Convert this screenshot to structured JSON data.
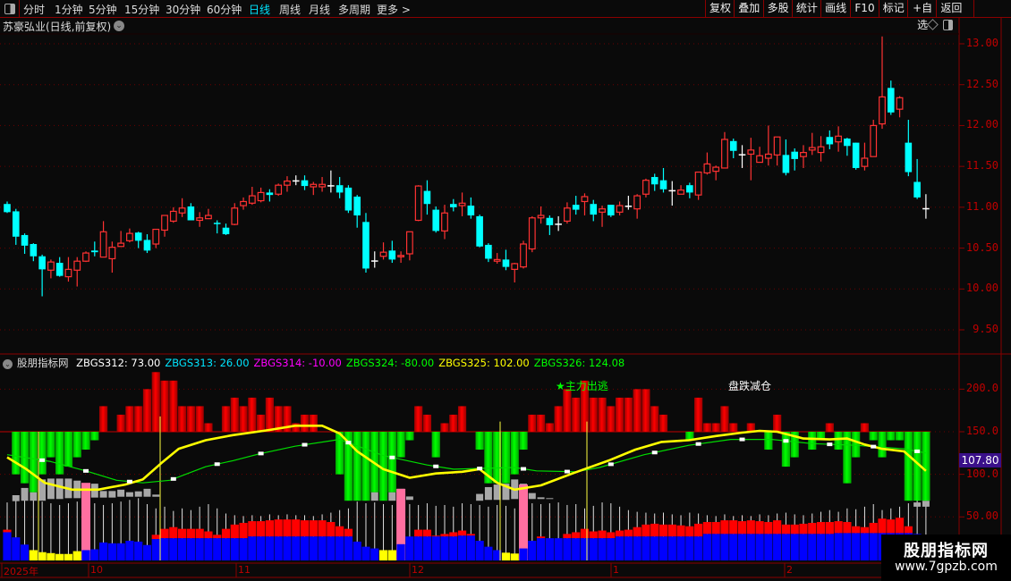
{
  "toolbar": {
    "periods": [
      "分时",
      "1分钟",
      "5分钟",
      "15分钟",
      "30分钟",
      "60分钟",
      "日线",
      "周线",
      "月线",
      "多周期",
      "更多 >"
    ],
    "active_period": "日线",
    "buttons": [
      "复权",
      "叠加",
      "多股",
      "统计",
      "画线",
      "F10",
      "标记",
      "+自选",
      "返回"
    ]
  },
  "chart": {
    "title": "苏豪弘业(日线,前复权)",
    "price_axis": [
      "13.00",
      "12.50",
      "12.00",
      "11.50",
      "11.00",
      "10.50",
      "10.00",
      "9.50"
    ],
    "up_color": "#ff3232",
    "down_color": "#00ffff",
    "candles": [
      [
        11.04,
        11.07,
        10.93,
        10.94
      ],
      [
        10.95,
        10.98,
        10.54,
        10.64
      ],
      [
        10.66,
        10.68,
        10.43,
        10.53
      ],
      [
        10.55,
        10.56,
        10.34,
        10.4
      ],
      [
        10.4,
        10.42,
        9.91,
        10.24
      ],
      [
        10.23,
        10.36,
        10.13,
        10.33
      ],
      [
        10.32,
        10.39,
        10.15,
        10.16
      ],
      [
        10.15,
        10.39,
        10.09,
        10.24
      ],
      [
        10.23,
        10.39,
        10.03,
        10.34
      ],
      [
        10.34,
        10.46,
        10.33,
        10.44
      ],
      [
        10.47,
        10.58,
        10.4,
        10.45
      ],
      [
        10.39,
        10.83,
        10.39,
        10.7
      ],
      [
        10.37,
        10.58,
        10.2,
        10.51
      ],
      [
        10.52,
        10.71,
        10.52,
        10.56
      ],
      [
        10.59,
        10.74,
        10.57,
        10.68
      ],
      [
        10.69,
        10.7,
        10.5,
        10.59
      ],
      [
        10.6,
        10.67,
        10.44,
        10.47
      ],
      [
        10.55,
        10.73,
        10.5,
        10.73
      ],
      [
        10.72,
        10.9,
        10.64,
        10.9
      ],
      [
        10.83,
        11.0,
        10.81,
        10.95
      ],
      [
        10.93,
        11.11,
        10.88,
        10.99
      ],
      [
        11.01,
        11.05,
        10.84,
        10.84
      ],
      [
        10.84,
        10.94,
        10.76,
        10.87
      ],
      [
        10.86,
        10.98,
        10.86,
        10.9
      ],
      [
        10.81,
        10.84,
        10.68,
        10.8
      ],
      [
        10.75,
        10.8,
        10.66,
        10.67
      ],
      [
        10.79,
        11.05,
        10.78,
        10.99
      ],
      [
        11.02,
        11.12,
        10.97,
        11.07
      ],
      [
        11.05,
        11.25,
        11.03,
        11.14
      ],
      [
        11.08,
        11.24,
        11.06,
        11.18
      ],
      [
        11.18,
        11.22,
        11.07,
        11.15
      ],
      [
        11.16,
        11.29,
        11.14,
        11.27
      ],
      [
        11.27,
        11.38,
        11.19,
        11.32
      ],
      [
        11.33,
        11.39,
        11.27,
        11.33
      ],
      [
        11.33,
        11.39,
        11.21,
        11.26
      ],
      [
        11.25,
        11.31,
        11.15,
        11.28
      ],
      [
        11.25,
        11.37,
        11.19,
        11.28
      ],
      [
        11.27,
        11.45,
        11.18,
        11.27
      ],
      [
        11.27,
        11.37,
        11.11,
        11.18
      ],
      [
        11.24,
        11.27,
        10.93,
        10.96
      ],
      [
        11.13,
        11.15,
        10.75,
        10.9
      ],
      [
        10.82,
        10.93,
        10.2,
        10.25
      ],
      [
        10.35,
        10.46,
        10.26,
        10.35
      ],
      [
        10.4,
        10.57,
        10.36,
        10.45
      ],
      [
        10.47,
        10.59,
        10.32,
        10.36
      ],
      [
        10.4,
        10.46,
        10.32,
        10.41
      ],
      [
        10.43,
        10.7,
        10.35,
        10.7
      ],
      [
        10.84,
        11.27,
        10.83,
        11.26
      ],
      [
        11.2,
        11.33,
        10.91,
        11.04
      ],
      [
        10.97,
        11.01,
        10.69,
        10.71
      ],
      [
        10.71,
        11.03,
        10.61,
        10.93
      ],
      [
        11.04,
        11.1,
        10.95,
        11.0
      ],
      [
        11.02,
        11.18,
        10.89,
        11.05
      ],
      [
        11.02,
        11.12,
        10.86,
        10.9
      ],
      [
        10.89,
        10.91,
        10.51,
        10.52
      ],
      [
        10.54,
        10.56,
        10.33,
        10.37
      ],
      [
        10.34,
        10.44,
        10.31,
        10.36
      ],
      [
        10.36,
        10.48,
        10.23,
        10.27
      ],
      [
        10.24,
        10.32,
        10.08,
        10.31
      ],
      [
        10.27,
        10.59,
        10.25,
        10.55
      ],
      [
        10.49,
        10.89,
        10.45,
        10.87
      ],
      [
        10.87,
        11.01,
        10.8,
        10.9
      ],
      [
        10.87,
        10.9,
        10.66,
        10.78
      ],
      [
        10.8,
        10.89,
        10.71,
        10.8
      ],
      [
        10.83,
        11.06,
        10.8,
        10.99
      ],
      [
        11.03,
        11.14,
        10.91,
        10.97
      ],
      [
        11.07,
        11.17,
        10.9,
        11.13
      ],
      [
        11.04,
        11.09,
        10.83,
        10.91
      ],
      [
        10.94,
        11.02,
        10.76,
        10.98
      ],
      [
        11.03,
        11.03,
        10.88,
        10.9
      ],
      [
        10.94,
        11.07,
        10.9,
        11.02
      ],
      [
        11.02,
        11.14,
        10.97,
        11.02
      ],
      [
        10.98,
        11.16,
        10.86,
        11.14
      ],
      [
        11.16,
        11.35,
        11.12,
        11.33
      ],
      [
        11.37,
        11.41,
        11.2,
        11.28
      ],
      [
        11.33,
        11.48,
        11.18,
        11.22
      ],
      [
        11.21,
        11.32,
        11.02,
        11.21
      ],
      [
        11.16,
        11.27,
        11.16,
        11.21
      ],
      [
        11.27,
        11.3,
        11.11,
        11.18
      ],
      [
        11.15,
        11.43,
        11.09,
        11.43
      ],
      [
        11.42,
        11.67,
        11.4,
        11.53
      ],
      [
        11.44,
        11.51,
        11.33,
        11.49
      ],
      [
        11.48,
        11.92,
        11.48,
        11.83
      ],
      [
        11.81,
        11.84,
        11.6,
        11.69
      ],
      [
        11.65,
        11.76,
        11.48,
        11.65
      ],
      [
        11.65,
        11.85,
        11.33,
        11.7
      ],
      [
        11.55,
        11.74,
        11.55,
        11.63
      ],
      [
        11.6,
        12.0,
        11.51,
        11.65
      ],
      [
        11.64,
        11.86,
        11.51,
        11.86
      ],
      [
        11.64,
        11.83,
        11.39,
        11.42
      ],
      [
        11.68,
        11.72,
        11.45,
        11.59
      ],
      [
        11.62,
        11.76,
        11.48,
        11.67
      ],
      [
        11.7,
        11.91,
        11.64,
        11.73
      ],
      [
        11.67,
        11.87,
        11.56,
        11.74
      ],
      [
        11.86,
        11.94,
        11.71,
        11.77
      ],
      [
        11.8,
        11.99,
        11.68,
        11.87
      ],
      [
        11.84,
        11.85,
        11.63,
        11.75
      ],
      [
        11.79,
        11.79,
        11.46,
        11.48
      ],
      [
        11.5,
        11.79,
        11.45,
        11.6
      ],
      [
        11.62,
        12.07,
        11.62,
        12.0
      ],
      [
        12.02,
        13.09,
        11.96,
        12.35
      ],
      [
        12.46,
        12.55,
        12.13,
        12.16
      ],
      [
        12.2,
        12.36,
        12.1,
        12.34
      ],
      [
        11.79,
        12.07,
        11.38,
        11.43
      ],
      [
        11.31,
        11.59,
        11.1,
        11.12
      ],
      [
        10.99,
        11.16,
        10.86,
        10.99
      ]
    ]
  },
  "indicator": {
    "name": "股朋指标网",
    "values": [
      {
        "label": "ZBGS312: 73.00",
        "color": "#ffffff"
      },
      {
        "label": "ZBGS313: 26.00",
        "color": "#00e5ff"
      },
      {
        "label": "ZBGS314: -10.00",
        "color": "#ff00ff"
      },
      {
        "label": "ZBGS324: -80.00",
        "color": "#00ff00"
      },
      {
        "label": "ZBGS325: 102.00",
        "color": "#ffff00"
      },
      {
        "label": "ZBGS326: 124.08",
        "color": "#00ff00"
      }
    ],
    "axis": [
      "200.0",
      "150.0",
      "100.0",
      "50.00"
    ],
    "current_value": "107.80",
    "annotations": [
      {
        "text": "★主力出逃",
        "color": "#00ff00"
      },
      {
        "text": "盘跌减仓",
        "color": "#ffffff"
      }
    ],
    "histogram_baseline": 150,
    "histogram": [
      150,
      100,
      89.5,
      79,
      100,
      120,
      100,
      109,
      120,
      129,
      140,
      180,
      150,
      170,
      180,
      180,
      200,
      220,
      210,
      210,
      180,
      180,
      180,
      160,
      150,
      180,
      190,
      180,
      190,
      170,
      190,
      180,
      180,
      160,
      170,
      170,
      150,
      150,
      100,
      69,
      69,
      69,
      79,
      69,
      79,
      120,
      140,
      180,
      170,
      120,
      160,
      170,
      180,
      150,
      129,
      89.5,
      89.5,
      89.5,
      100,
      129,
      170,
      170,
      160,
      180,
      200,
      190,
      210,
      190,
      190,
      180,
      190,
      190,
      200,
      200,
      180,
      170,
      150,
      150,
      140,
      190,
      160,
      160,
      180,
      160,
      150,
      160,
      150,
      129,
      170,
      109,
      120,
      150,
      129,
      140,
      160,
      129,
      89.5,
      120,
      160,
      140,
      120,
      140,
      140,
      69,
      69,
      69
    ],
    "yellow_line": [
      [
        1,
        120
      ],
      [
        3.2,
        106
      ],
      [
        5.3,
        90
      ],
      [
        8.4,
        82
      ],
      [
        11.4,
        82
      ],
      [
        14.5,
        88
      ],
      [
        16.5,
        94
      ],
      [
        18.6,
        113
      ],
      [
        20.6,
        130
      ],
      [
        23.7,
        140
      ],
      [
        26.8,
        146
      ],
      [
        30.9,
        152
      ],
      [
        33.9,
        157
      ],
      [
        37,
        157
      ],
      [
        39,
        148
      ],
      [
        41,
        127
      ],
      [
        44,
        106
      ],
      [
        47,
        96
      ],
      [
        50,
        101
      ],
      [
        53,
        103
      ],
      [
        55,
        106
      ],
      [
        57,
        90
      ],
      [
        59,
        82
      ],
      [
        62,
        87
      ],
      [
        65.6,
        101
      ],
      [
        69.7,
        116
      ],
      [
        72.8,
        129
      ],
      [
        75.8,
        138
      ],
      [
        78.9,
        140
      ],
      [
        82,
        145
      ],
      [
        85,
        149
      ],
      [
        87,
        151
      ],
      [
        89,
        150
      ],
      [
        92,
        142
      ],
      [
        95,
        141
      ],
      [
        97,
        142
      ],
      [
        99,
        135
      ],
      [
        101,
        130
      ],
      [
        103.5,
        127
      ],
      [
        106,
        104
      ]
    ],
    "green_line": [
      [
        1,
        123
      ],
      [
        6,
        115
      ],
      [
        10,
        104
      ],
      [
        13.5,
        93
      ],
      [
        16.5,
        90
      ],
      [
        19.6,
        93
      ],
      [
        23.7,
        109
      ],
      [
        26.8,
        116
      ],
      [
        29.8,
        124
      ],
      [
        33.9,
        133
      ],
      [
        39,
        141
      ],
      [
        44,
        122
      ],
      [
        49,
        111
      ],
      [
        52,
        106
      ],
      [
        59,
        108
      ],
      [
        61.5,
        104
      ],
      [
        66,
        103
      ],
      [
        68.7,
        108
      ],
      [
        73.8,
        123
      ],
      [
        78.9,
        134
      ],
      [
        83.7,
        141
      ],
      [
        88.4,
        141
      ],
      [
        93,
        136
      ],
      [
        98,
        134
      ],
      [
        103.5,
        130
      ],
      [
        106,
        125
      ]
    ],
    "blue": [
      32,
      26,
      17.5,
      11,
      8.6,
      7.5,
      6.5,
      6.5,
      9.8,
      11,
      12,
      20,
      19,
      19,
      22,
      21,
      17,
      24,
      25,
      25,
      25,
      25,
      25,
      25,
      25,
      25,
      25,
      25,
      27,
      27,
      27,
      27,
      27,
      27,
      27,
      27,
      27,
      27,
      27,
      27,
      21,
      15,
      13,
      11,
      11,
      18,
      27,
      27,
      27,
      27,
      27,
      27,
      28,
      28,
      22,
      15,
      11,
      8,
      7,
      13,
      22,
      25,
      25,
      25,
      25,
      25,
      25,
      25,
      25,
      25,
      27,
      27,
      27,
      27,
      27,
      27,
      27,
      27,
      27,
      27,
      30,
      30,
      30,
      30,
      30,
      30,
      30,
      30,
      30,
      30,
      30,
      30,
      30,
      30,
      30,
      31,
      31,
      31,
      31,
      31,
      31,
      31,
      31,
      31,
      30,
      0
    ],
    "red": [
      35,
      0,
      0,
      0,
      0,
      0,
      0,
      0,
      0,
      0,
      0,
      0,
      0,
      0,
      0,
      0,
      0,
      29,
      36,
      38,
      36,
      36,
      36,
      33,
      29,
      36,
      41,
      43,
      45,
      45,
      46,
      47,
      47,
      47,
      46,
      46,
      46,
      44,
      39,
      36,
      0,
      0,
      0,
      0,
      0,
      0,
      0,
      35,
      35,
      28,
      30,
      32,
      34,
      30,
      0,
      0,
      0,
      0,
      0,
      0,
      0,
      27,
      0,
      0,
      30,
      32,
      36,
      33,
      34,
      32,
      34,
      35,
      38,
      41,
      42,
      41,
      41,
      40,
      39,
      42,
      44,
      44,
      46,
      46,
      45,
      46,
      45,
      44,
      46,
      41,
      41,
      42,
      43,
      44,
      44,
      45,
      44,
      39,
      38,
      43,
      48,
      47,
      49,
      39,
      0,
      0
    ],
    "yellow_bars": [
      4,
      5,
      6,
      7,
      8,
      9,
      44,
      45,
      58,
      59
    ],
    "pink_bars": [
      [
        10,
        90
      ],
      [
        46,
        83
      ],
      [
        60,
        88
      ]
    ],
    "gray_bars": [
      [
        2,
        75.5,
        68.5
      ],
      [
        3,
        84,
        69
      ],
      [
        4,
        79,
        69
      ],
      [
        5,
        94,
        69
      ],
      [
        6,
        95,
        71
      ],
      [
        7,
        95,
        71
      ],
      [
        8,
        95,
        72
      ],
      [
        9,
        92.6,
        72
      ],
      [
        10,
        89.5,
        72.7
      ],
      [
        11,
        89,
        72.7
      ],
      [
        12,
        80.4,
        72.7
      ],
      [
        13,
        80.4,
        72.7
      ],
      [
        14,
        82,
        73.7
      ],
      [
        15,
        79,
        73.7
      ],
      [
        16,
        80,
        73.7
      ],
      [
        17,
        83,
        73.7
      ],
      [
        18,
        76.2,
        73.7
      ],
      [
        43,
        79,
        69
      ],
      [
        45,
        79,
        69
      ],
      [
        46,
        83,
        70
      ],
      [
        47,
        74,
        70
      ],
      [
        55,
        77,
        69
      ],
      [
        56,
        85,
        70
      ],
      [
        57,
        88,
        70
      ],
      [
        58,
        89,
        70
      ],
      [
        59,
        94,
        71
      ],
      [
        60,
        89,
        71
      ],
      [
        61,
        78,
        71
      ],
      [
        62,
        73,
        71
      ],
      [
        63,
        72,
        71
      ],
      [
        105,
        67,
        62
      ],
      [
        106,
        69,
        62
      ]
    ],
    "white_lines": [
      67,
      70,
      72,
      70,
      68,
      66,
      64,
      66,
      68,
      70,
      66,
      64,
      66,
      68,
      70,
      72,
      65,
      60,
      62,
      57,
      60,
      58,
      62,
      65,
      60,
      54,
      52,
      51,
      52,
      51,
      53,
      52,
      53,
      52,
      52,
      51,
      53,
      55,
      58,
      60,
      68,
      66,
      67,
      65,
      64,
      66,
      65,
      64,
      66,
      63,
      64,
      62,
      66,
      65,
      64,
      62,
      64,
      63,
      60,
      62,
      66,
      65,
      66,
      67,
      64,
      65,
      60,
      63,
      67,
      66,
      62,
      58,
      56,
      55,
      54,
      55,
      53,
      52,
      55,
      54,
      52,
      51,
      53,
      51,
      52,
      51,
      53,
      52,
      54,
      55,
      53,
      52,
      54,
      56,
      58,
      56,
      60,
      59,
      62,
      65,
      58,
      60,
      62,
      66,
      70,
      65
    ]
  },
  "date_axis": [
    "2025年",
    "10",
    "11",
    "12",
    "1",
    "2"
  ],
  "watermark": {
    "title": "股朋指标网",
    "url": "www.7gpzb.com"
  }
}
